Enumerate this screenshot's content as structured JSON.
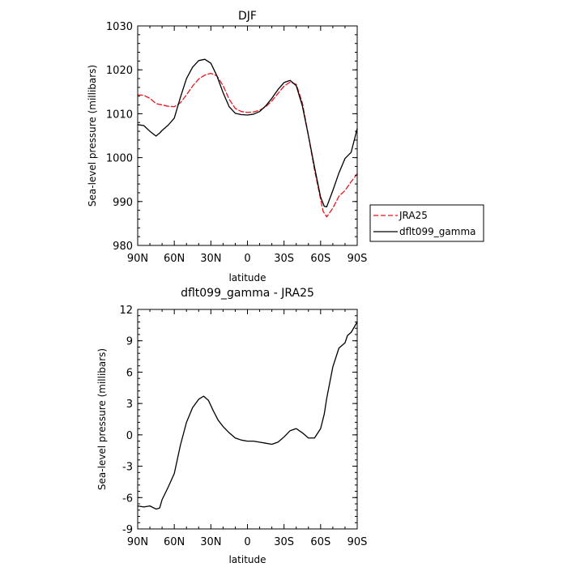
{
  "chart_data": [
    {
      "type": "line",
      "title": "DJF",
      "xlabel": "latitude",
      "ylabel": "Sea-level pressure (millibars)",
      "xlim": [
        90,
        -90
      ],
      "ylim": [
        980,
        1030
      ],
      "xticks": [
        90,
        60,
        30,
        0,
        -30,
        -60,
        -90
      ],
      "xtick_labels": [
        "90N",
        "60N",
        "30N",
        "0",
        "30S",
        "60S",
        "90S"
      ],
      "yticks": [
        980,
        990,
        1000,
        1010,
        1020,
        1030
      ],
      "ytick_labels": [
        "980",
        "990",
        "1000",
        "1010",
        "1020",
        "1030"
      ],
      "legend": "right",
      "series": [
        {
          "name": "JRA25",
          "color": "#e8141e",
          "dash": "dashed",
          "points": [
            [
              90,
              1014.3
            ],
            [
              85,
              1014.2
            ],
            [
              80,
              1013.5
            ],
            [
              75,
              1012.3
            ],
            [
              70,
              1012.0
            ],
            [
              65,
              1011.7
            ],
            [
              60,
              1011.6
            ],
            [
              55,
              1012.5
            ],
            [
              50,
              1014.3
            ],
            [
              45,
              1016.3
            ],
            [
              40,
              1017.9
            ],
            [
              35,
              1018.8
            ],
            [
              30,
              1019.2
            ],
            [
              25,
              1018.6
            ],
            [
              20,
              1016.4
            ],
            [
              15,
              1013.3
            ],
            [
              10,
              1011.2
            ],
            [
              5,
              1010.5
            ],
            [
              0,
              1010.3
            ],
            [
              -5,
              1010.4
            ],
            [
              -10,
              1010.8
            ],
            [
              -15,
              1011.6
            ],
            [
              -20,
              1012.9
            ],
            [
              -25,
              1014.6
            ],
            [
              -30,
              1016.3
            ],
            [
              -35,
              1017.2
            ],
            [
              -40,
              1016.7
            ],
            [
              -45,
              1012.5
            ],
            [
              -50,
              1005.0
            ],
            [
              -55,
              997.2
            ],
            [
              -60,
              990.5
            ],
            [
              -62,
              987.8
            ],
            [
              -65,
              986.5
            ],
            [
              -70,
              988.5
            ],
            [
              -75,
              991.2
            ],
            [
              -80,
              992.5
            ],
            [
              -85,
              994.5
            ],
            [
              -90,
              996.3
            ]
          ]
        },
        {
          "name": "dflt099_gamma",
          "color": "#000000",
          "dash": "solid",
          "points": [
            [
              90,
              1007.5
            ],
            [
              85,
              1007.3
            ],
            [
              80,
              1006.0
            ],
            [
              75,
              1004.9
            ],
            [
              72,
              1005.6
            ],
            [
              70,
              1006.2
            ],
            [
              65,
              1007.4
            ],
            [
              60,
              1009.0
            ],
            [
              55,
              1013.7
            ],
            [
              50,
              1018.0
            ],
            [
              45,
              1020.6
            ],
            [
              40,
              1022.1
            ],
            [
              35,
              1022.4
            ],
            [
              30,
              1021.5
            ],
            [
              25,
              1018.6
            ],
            [
              20,
              1014.8
            ],
            [
              15,
              1011.6
            ],
            [
              10,
              1010.1
            ],
            [
              5,
              1009.8
            ],
            [
              0,
              1009.7
            ],
            [
              -5,
              1009.9
            ],
            [
              -10,
              1010.5
            ],
            [
              -15,
              1011.8
            ],
            [
              -20,
              1013.5
            ],
            [
              -25,
              1015.5
            ],
            [
              -30,
              1017.1
            ],
            [
              -35,
              1017.6
            ],
            [
              -40,
              1016.4
            ],
            [
              -45,
              1011.8
            ],
            [
              -50,
              1005.0
            ],
            [
              -55,
              997.8
            ],
            [
              -60,
              991.0
            ],
            [
              -63,
              988.9
            ],
            [
              -65,
              988.8
            ],
            [
              -70,
              992.5
            ],
            [
              -75,
              996.5
            ],
            [
              -80,
              999.8
            ],
            [
              -85,
              1001.2
            ],
            [
              -90,
              1006.6
            ]
          ]
        }
      ]
    },
    {
      "type": "line",
      "title": "dflt099_gamma - JRA25",
      "xlabel": "latitude",
      "ylabel": "Sea-level pressure (millibars)",
      "xlim": [
        90,
        -90
      ],
      "ylim": [
        -9,
        12
      ],
      "xticks": [
        90,
        60,
        30,
        0,
        -30,
        -60,
        -90
      ],
      "xtick_labels": [
        "90N",
        "60N",
        "30N",
        "0",
        "30S",
        "60S",
        "90S"
      ],
      "yticks": [
        -9,
        -6,
        -3,
        0,
        3,
        6,
        9,
        12
      ],
      "ytick_labels": [
        "-9",
        "-6",
        "-3",
        "0",
        "3",
        "6",
        "9",
        "12"
      ],
      "series": [
        {
          "color": "#000000",
          "dash": "solid",
          "points": [
            [
              90,
              -6.8
            ],
            [
              85,
              -6.9
            ],
            [
              80,
              -6.8
            ],
            [
              75,
              -7.1
            ],
            [
              72,
              -7.0
            ],
            [
              70,
              -6.2
            ],
            [
              65,
              -5.0
            ],
            [
              60,
              -3.7
            ],
            [
              55,
              -1.0
            ],
            [
              50,
              1.2
            ],
            [
              45,
              2.6
            ],
            [
              40,
              3.4
            ],
            [
              36,
              3.7
            ],
            [
              32,
              3.3
            ],
            [
              28,
              2.3
            ],
            [
              24,
              1.4
            ],
            [
              20,
              0.8
            ],
            [
              15,
              0.2
            ],
            [
              10,
              -0.3
            ],
            [
              5,
              -0.5
            ],
            [
              0,
              -0.6
            ],
            [
              -5,
              -0.6
            ],
            [
              -10,
              -0.7
            ],
            [
              -15,
              -0.8
            ],
            [
              -20,
              -0.9
            ],
            [
              -25,
              -0.7
            ],
            [
              -30,
              -0.2
            ],
            [
              -35,
              0.4
            ],
            [
              -40,
              0.6
            ],
            [
              -45,
              0.2
            ],
            [
              -50,
              -0.3
            ],
            [
              -55,
              -0.3
            ],
            [
              -60,
              0.6
            ],
            [
              -63,
              2.0
            ],
            [
              -65,
              3.5
            ],
            [
              -70,
              6.5
            ],
            [
              -75,
              8.3
            ],
            [
              -80,
              8.8
            ],
            [
              -82,
              9.5
            ],
            [
              -85,
              9.8
            ],
            [
              -90,
              10.8
            ]
          ]
        }
      ]
    }
  ]
}
